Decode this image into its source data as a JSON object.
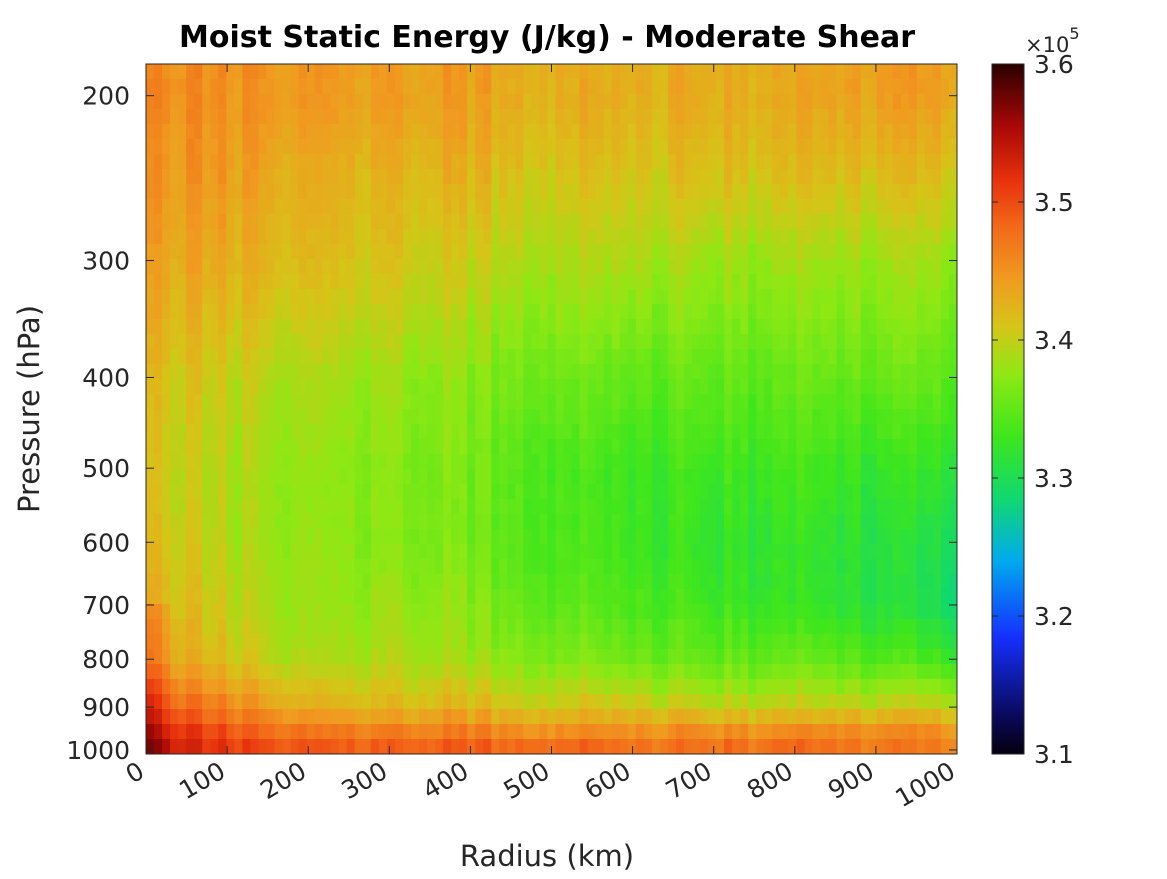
{
  "chart_data": {
    "type": "heatmap",
    "title": "Moist Static Energy (J/kg) - Moderate Shear",
    "xlabel": "Radius (km)",
    "ylabel": "Pressure (hPa)",
    "x_range": [
      0,
      1000
    ],
    "y_range": [
      185,
      1010
    ],
    "y_scale": "log",
    "y_reversed": true,
    "x_ticks": [
      "0",
      "100",
      "200",
      "300",
      "400",
      "500",
      "600",
      "700",
      "800",
      "900",
      "1000"
    ],
    "x_tick_values": [
      0,
      100,
      200,
      300,
      400,
      500,
      600,
      700,
      800,
      900,
      1000
    ],
    "y_ticks": [
      "200",
      "300",
      "400",
      "500",
      "600",
      "700",
      "800",
      "900",
      "1000"
    ],
    "y_tick_values": [
      200,
      300,
      400,
      500,
      600,
      700,
      800,
      900,
      1000
    ],
    "colorbar": {
      "min": 3.1,
      "max": 3.6,
      "ticks": [
        "3.1",
        "3.2",
        "3.3",
        "3.4",
        "3.5",
        "3.6"
      ],
      "tick_values": [
        3.1,
        3.2,
        3.3,
        3.4,
        3.5,
        3.6
      ],
      "multiplier_base": "×10",
      "multiplier_exponent": "5",
      "colormap": "jet-like (black-blue-cyan-green-yellow-orange-red-dark red)"
    },
    "grid": false,
    "radius_km": [
      0,
      100,
      200,
      300,
      400,
      500,
      600,
      700,
      800,
      900,
      1000
    ],
    "pressure_hPa": [
      200,
      250,
      300,
      400,
      500,
      600,
      700,
      800,
      900,
      950,
      1000
    ],
    "mse_1e5": [
      [
        3.46,
        3.45,
        3.45,
        3.44,
        3.44,
        3.43,
        3.43,
        3.43,
        3.43,
        3.44,
        3.44
      ],
      [
        3.45,
        3.44,
        3.43,
        3.42,
        3.42,
        3.41,
        3.41,
        3.41,
        3.41,
        3.41,
        3.41
      ],
      [
        3.44,
        3.43,
        3.42,
        3.41,
        3.4,
        3.39,
        3.39,
        3.38,
        3.38,
        3.38,
        3.38
      ],
      [
        3.42,
        3.4,
        3.39,
        3.38,
        3.37,
        3.36,
        3.35,
        3.35,
        3.35,
        3.35,
        3.35
      ],
      [
        3.41,
        3.39,
        3.38,
        3.37,
        3.36,
        3.34,
        3.33,
        3.33,
        3.33,
        3.32,
        3.32
      ],
      [
        3.42,
        3.39,
        3.38,
        3.37,
        3.36,
        3.34,
        3.33,
        3.32,
        3.32,
        3.31,
        3.3
      ],
      [
        3.43,
        3.4,
        3.38,
        3.38,
        3.37,
        3.35,
        3.34,
        3.33,
        3.32,
        3.31,
        3.29
      ],
      [
        3.45,
        3.41,
        3.39,
        3.39,
        3.38,
        3.37,
        3.36,
        3.35,
        3.35,
        3.34,
        3.33
      ],
      [
        3.5,
        3.46,
        3.43,
        3.42,
        3.42,
        3.41,
        3.41,
        3.4,
        3.4,
        3.4,
        3.4
      ],
      [
        3.53,
        3.49,
        3.47,
        3.46,
        3.46,
        3.45,
        3.45,
        3.45,
        3.45,
        3.45,
        3.45
      ],
      [
        3.55,
        3.51,
        3.5,
        3.49,
        3.49,
        3.49,
        3.48,
        3.48,
        3.48,
        3.47,
        3.47
      ]
    ]
  }
}
